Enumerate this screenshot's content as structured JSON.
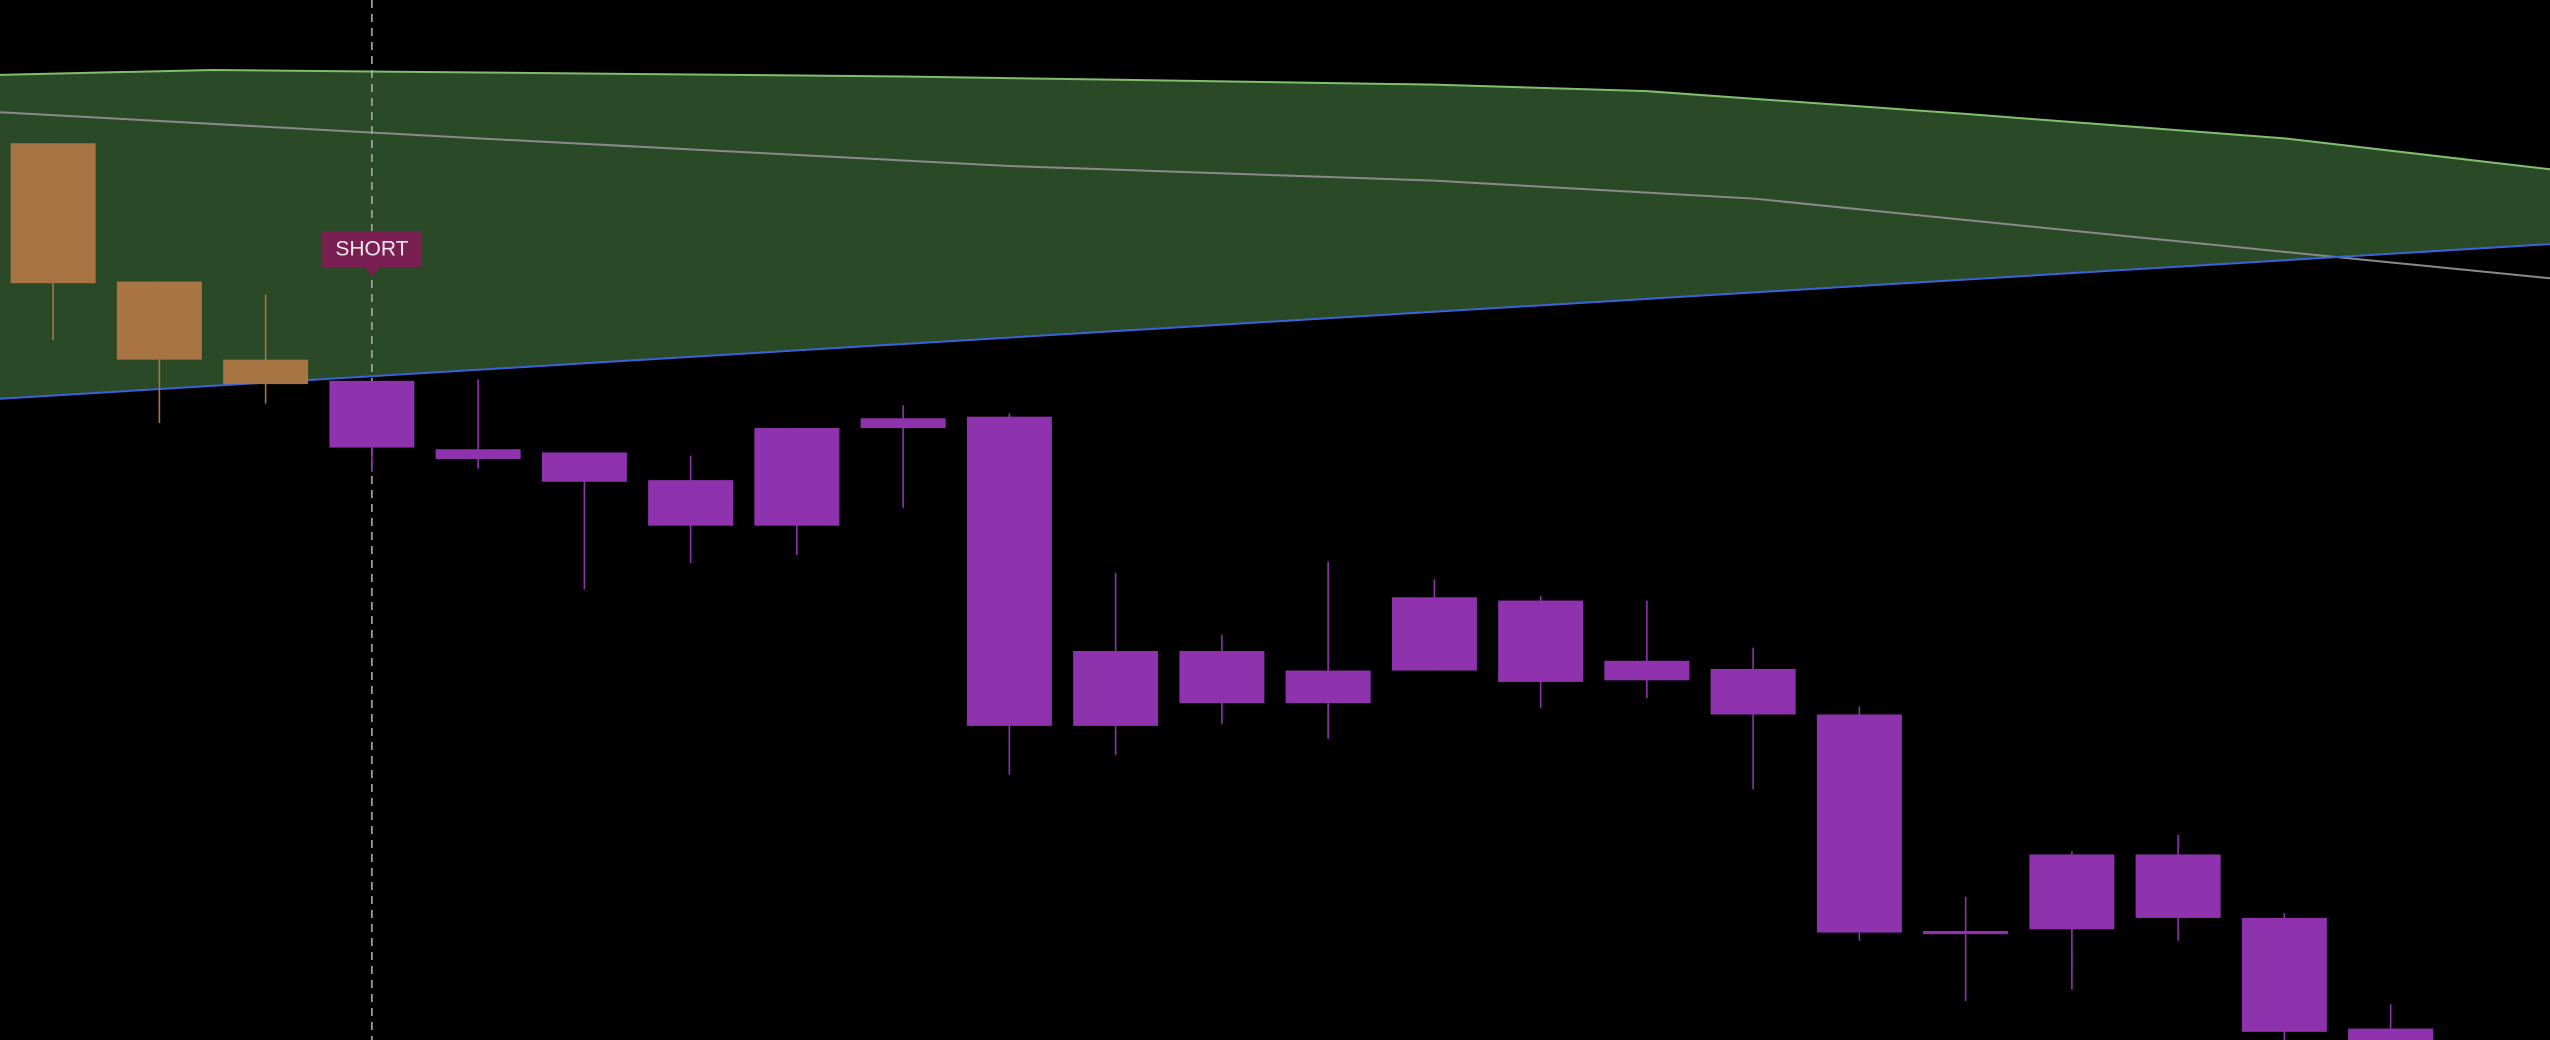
{
  "chart_data": {
    "type": "candlestick",
    "xlim": [
      -0.5,
      23.5
    ],
    "ylim": [
      0,
      639
    ],
    "x": [
      0,
      1,
      2,
      3,
      4,
      5,
      6,
      7,
      8,
      9,
      10,
      11,
      12,
      13,
      14,
      15,
      16,
      17,
      18,
      19,
      20,
      21,
      22
    ],
    "open": [
      551,
      466,
      418,
      405,
      363,
      361,
      344,
      376,
      382,
      383,
      239,
      239,
      227,
      272,
      270,
      233,
      228,
      200,
      67,
      114,
      114,
      75,
      7
    ],
    "high": [
      551,
      466,
      458,
      405,
      406,
      361,
      359,
      376,
      390,
      385,
      287,
      249,
      294,
      283,
      273,
      270,
      241,
      205,
      88,
      116,
      126,
      78,
      22
    ],
    "low": [
      430,
      379,
      391,
      349,
      351,
      277,
      293,
      298,
      327,
      163,
      175,
      194,
      185,
      227,
      204,
      210,
      154,
      61,
      24,
      31,
      61,
      -6,
      -12
    ],
    "close": [
      465,
      418,
      403,
      364,
      357,
      343,
      316,
      316,
      376,
      193,
      193,
      207,
      207,
      227,
      220,
      221,
      200,
      66,
      65,
      68,
      75,
      5,
      -6
    ],
    "colors": [
      "#a87443",
      "#a87443",
      "#a87443",
      "#8e33ad",
      "#8e33ad",
      "#8e33ad",
      "#8e33ad",
      "#8e33ad",
      "#8e33ad",
      "#8e33ad",
      "#8e33ad",
      "#8e33ad",
      "#8e33ad",
      "#8e33ad",
      "#8e33ad",
      "#8e33ad",
      "#8e33ad",
      "#8e33ad",
      "#8e33ad",
      "#8e33ad",
      "#8e33ad",
      "#8e33ad",
      "#8e33ad"
    ],
    "upper_band": {
      "color": "#7fbf6f",
      "x": [
        -0.5,
        1.5,
        8,
        13,
        15,
        18,
        21,
        23.5
      ],
      "values": [
        593,
        596,
        592,
        587,
        583,
        569,
        554,
        535
      ]
    },
    "lower_band": {
      "color": "#3a63d8",
      "x": [
        -0.5,
        23.5
      ],
      "values": [
        394,
        489
      ]
    },
    "band_fill": "#2a4a27",
    "mid_line": {
      "color": "#8a8a8a",
      "x": [
        -0.5,
        4,
        9,
        13,
        16,
        19.5,
        23.5
      ],
      "values": [
        570,
        554,
        537,
        528,
        517,
        494,
        468
      ]
    },
    "annotation": {
      "text": "SHORT",
      "x": 3,
      "color": "#7a1f52"
    }
  }
}
